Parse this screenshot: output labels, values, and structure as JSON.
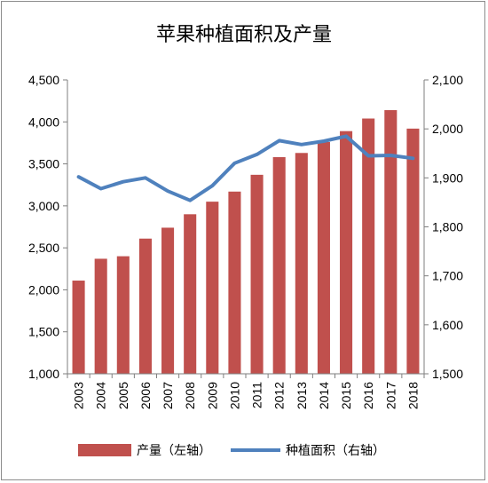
{
  "chart_data": {
    "type": "bar+line",
    "title": "苹果种植面积及产量",
    "categories": [
      "2003",
      "2004",
      "2005",
      "2006",
      "2007",
      "2008",
      "2009",
      "2010",
      "2011",
      "2012",
      "2013",
      "2014",
      "2015",
      "2016",
      "2017",
      "2018"
    ],
    "series": [
      {
        "name": "产量（左轴）",
        "type": "bar",
        "axis": "left",
        "color": "#c0504d",
        "values": [
          2110,
          2370,
          2400,
          2610,
          2740,
          2900,
          3050,
          3170,
          3370,
          3580,
          3630,
          3760,
          3890,
          4040,
          4140,
          3920
        ]
      },
      {
        "name": "种植面积（右轴）",
        "type": "line",
        "axis": "right",
        "color": "#4f81bd",
        "values": [
          1902,
          1878,
          1892,
          1900,
          1873,
          1854,
          1884,
          1930,
          1948,
          1976,
          1968,
          1975,
          1985,
          1945,
          1946,
          1940
        ]
      }
    ],
    "left_axis": {
      "ylim": [
        1000,
        4500
      ],
      "ticks": [
        "1,000",
        "1,500",
        "2,000",
        "2,500",
        "3,000",
        "3,500",
        "4,000",
        "4,500"
      ]
    },
    "right_axis": {
      "ylim": [
        1500,
        2100
      ],
      "ticks": [
        "1,500",
        "1,600",
        "1,700",
        "1,800",
        "1,900",
        "2,000",
        "2,100"
      ]
    },
    "grid": false,
    "legend_position": "bottom"
  }
}
